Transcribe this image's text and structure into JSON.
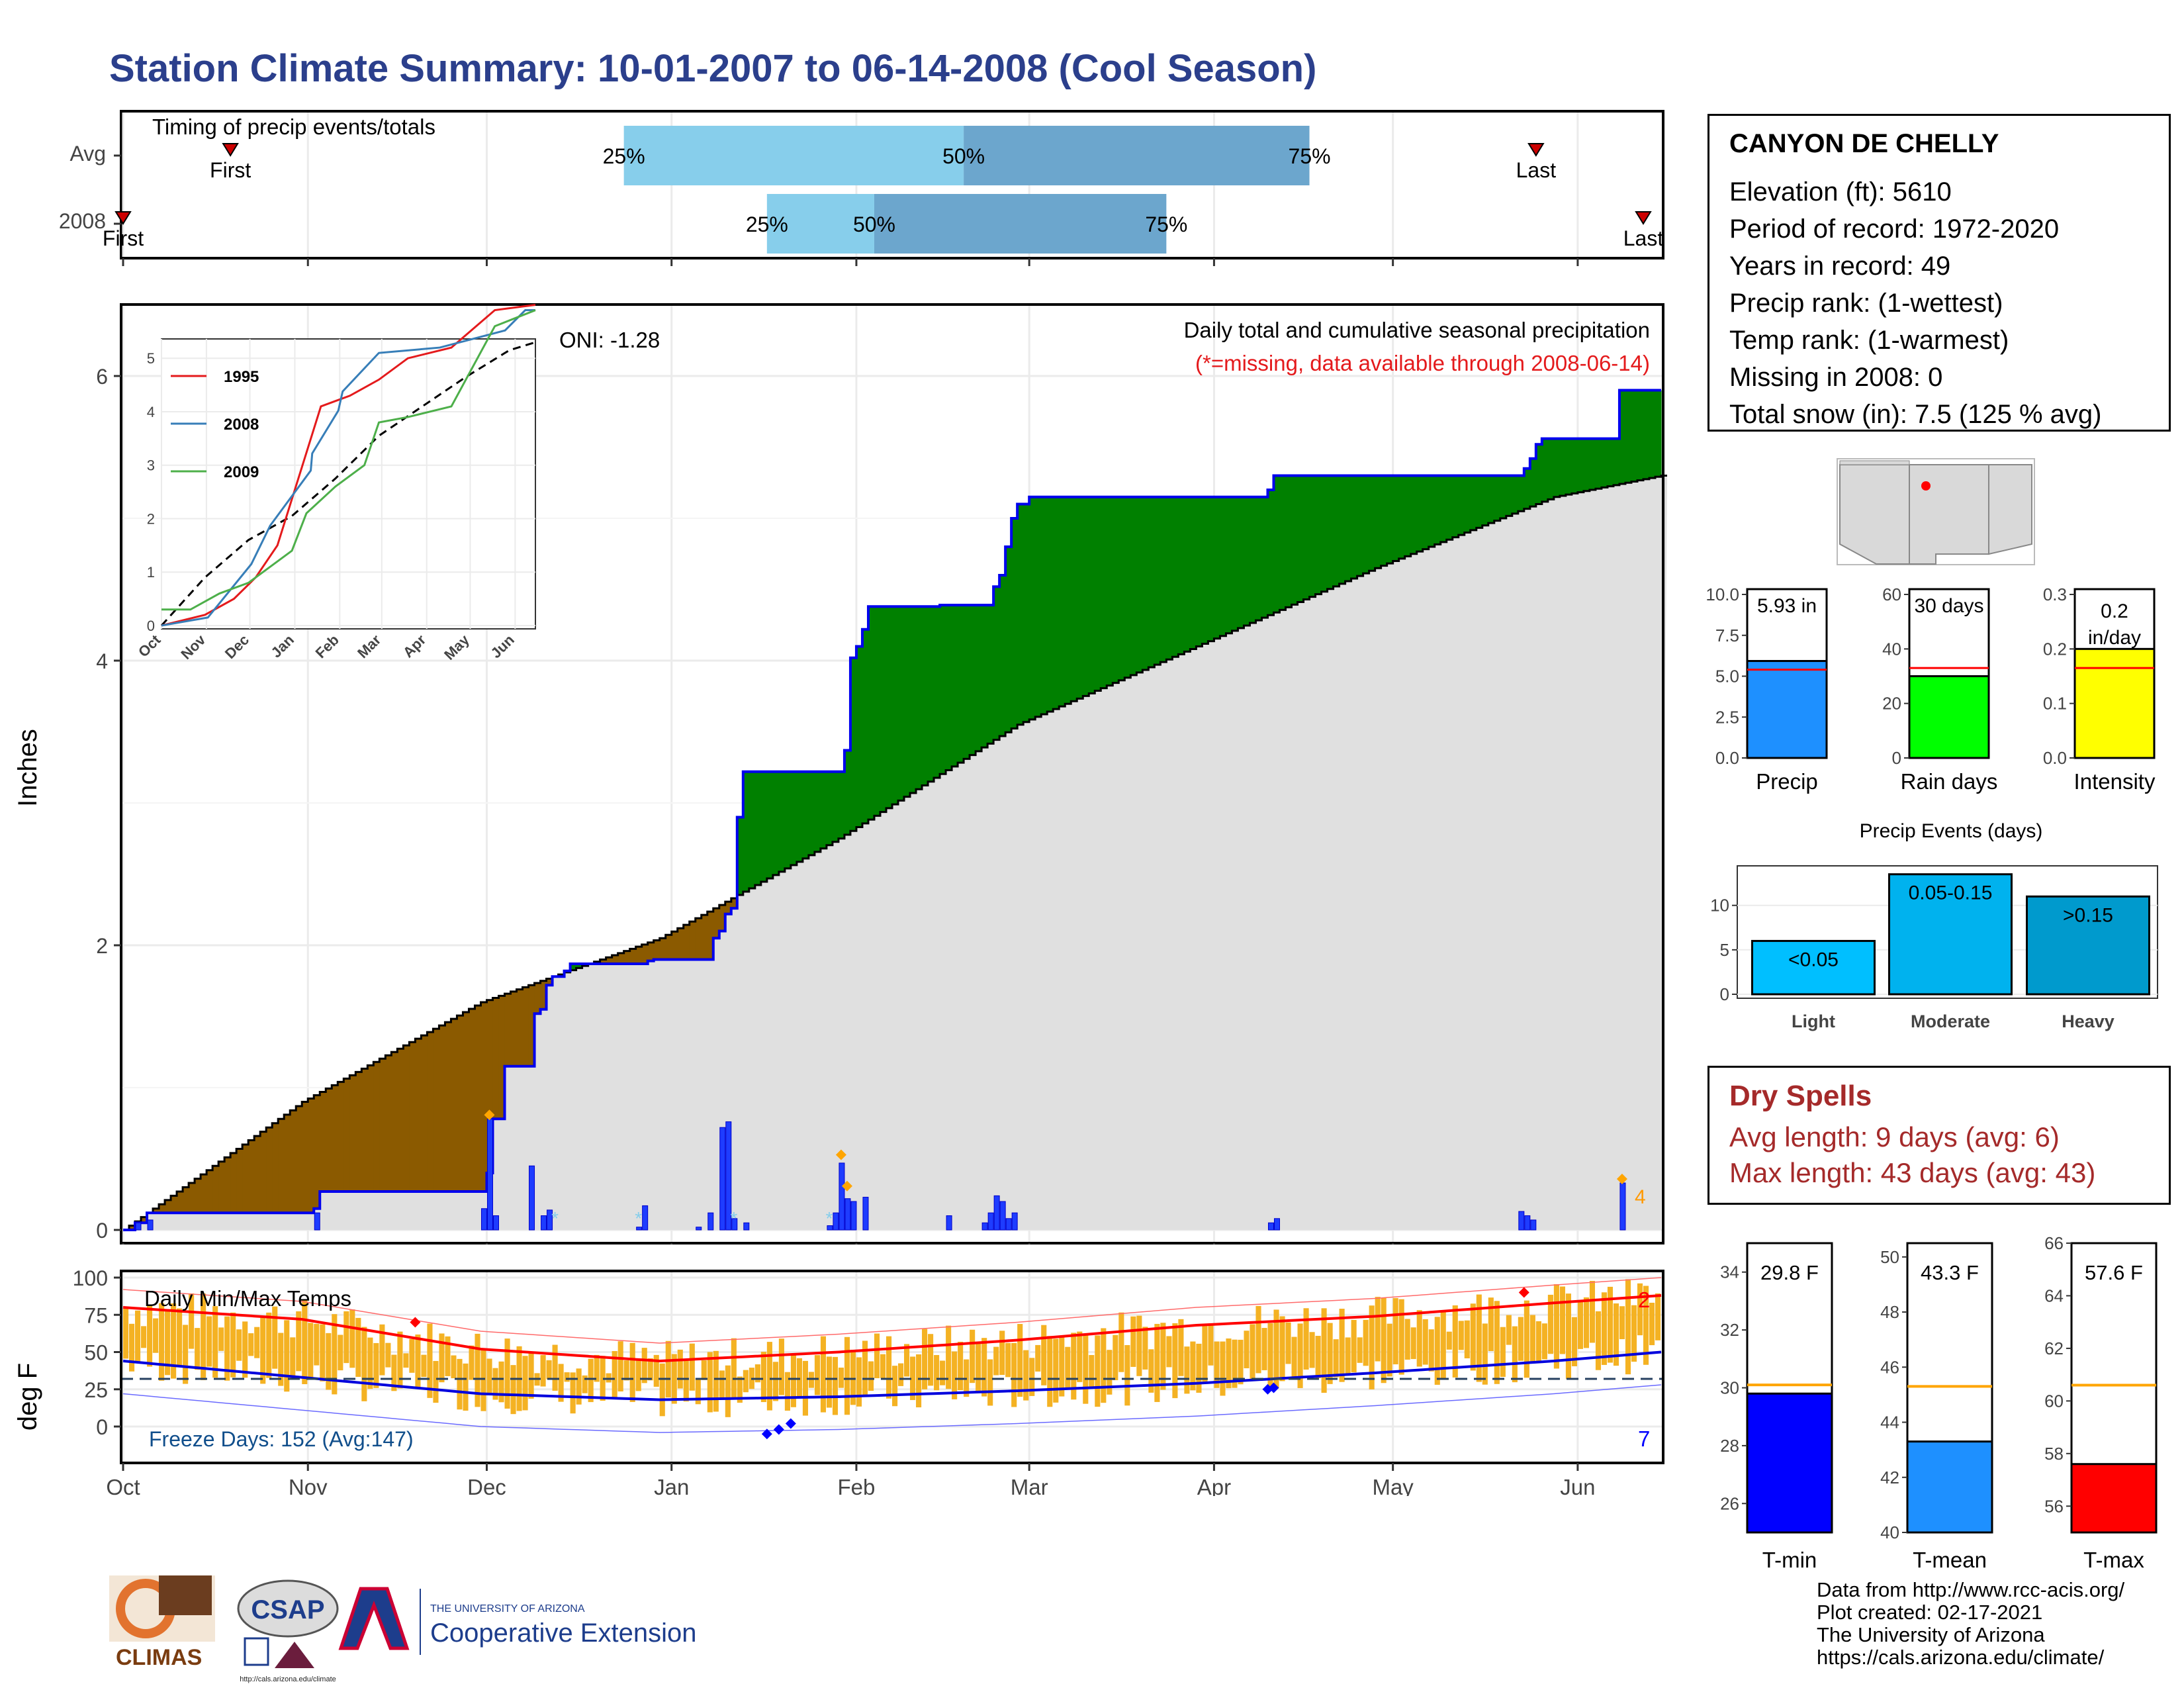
{
  "title": "Station Climate Summary: 10-01-2007 to 06-14-2008 (Cool Season)",
  "timing": {
    "label": "Timing of precip events/totals",
    "rows": [
      {
        "label": "Avg",
        "first_day": 18,
        "last_day": 237,
        "q25_day": 84,
        "q50_day": 141,
        "q75_day": 199
      },
      {
        "label": "2008",
        "first_day": 0,
        "last_day": 255,
        "q25_day": 108,
        "q50_day": 126,
        "q75_day": 175
      }
    ],
    "first_label": "First",
    "last_label": "Last",
    "q_labels": [
      "25%",
      "50%",
      "75%"
    ]
  },
  "precip_panel": {
    "title": "Daily total and cumulative seasonal precipitation",
    "subtitle": "(*=missing, data available through 2008-06-14)",
    "oni": "ONI: -1.28",
    "ylabel": "Inches",
    "yticks": [
      "0",
      "2",
      "4",
      "6"
    ],
    "right_count": "4"
  },
  "months": [
    "Oct",
    "Nov",
    "Dec",
    "Jan",
    "Feb",
    "Mar",
    "Apr",
    "May",
    "Jun"
  ],
  "inset": {
    "legend": [
      "1995",
      "2008",
      "2009"
    ],
    "yticks": [
      "0",
      "1",
      "2",
      "3",
      "4",
      "5"
    ],
    "months": [
      "Oct",
      "Nov",
      "Dec",
      "Jan",
      "Feb",
      "Mar",
      "Apr",
      "May",
      "Jun"
    ]
  },
  "temp_panel": {
    "title": "Daily Min/Max Temps",
    "ylabel": "deg F",
    "yticks": [
      "0",
      "25",
      "50",
      "75",
      "100"
    ],
    "freeze": "Freeze Days: 152 (Avg:147)",
    "count_high": "2",
    "count_low": "7"
  },
  "station": {
    "name": "CANYON DE CHELLY",
    "rows": [
      "Elevation (ft): 5610",
      "Period of record: 1972-2020",
      "Years in record: 49",
      "Precip rank:  (1-wettest)",
      "Temp rank:  (1-warmest)",
      "Missing in 2008: 0",
      "Total snow (in): 7.5 (125 % avg)"
    ]
  },
  "summary_bars": [
    {
      "label": "Precip",
      "value_text": "5.93 in",
      "value": 5.93,
      "avg": 5.4,
      "ymax": 10.0,
      "ticks": [
        "0.0",
        "2.5",
        "5.0",
        "7.5",
        "10.0"
      ],
      "color": "#1e90ff"
    },
    {
      "label": "Rain days",
      "value_text": "30 days",
      "value": 30,
      "avg": 33,
      "ymax": 60,
      "ticks": [
        "0",
        "20",
        "40",
        "60"
      ],
      "color": "#00ff00"
    },
    {
      "label": "Intensity",
      "value_text": "0.2 in/day",
      "value": 0.2,
      "avg": 0.165,
      "ymax": 0.3,
      "ticks": [
        "0.0",
        "0.1",
        "0.2",
        "0.3"
      ],
      "color": "#ffff00"
    }
  ],
  "events": {
    "title": "Precip Events (days)",
    "ticks": [
      "0",
      "5",
      "10"
    ],
    "bars": [
      {
        "label": "Light",
        "range": "<0.05",
        "value": 6,
        "color": "#00bfff"
      },
      {
        "label": "Moderate",
        "range": "0.05-0.15",
        "value": 13.5,
        "color": "#00b2ee"
      },
      {
        "label": "Heavy",
        "range": ">0.15",
        "value": 11,
        "color": "#009acd"
      }
    ]
  },
  "dry_spells": {
    "title": "Dry Spells",
    "avg_length": "Avg length: 9 days (avg: 6)",
    "max_length": "Max length: 43 days (avg: 43)"
  },
  "temp_bars": [
    {
      "label": "T-min",
      "value_text": "29.8 F",
      "value": 29.8,
      "avg": 30.1,
      "ymin": 25,
      "ymax": 35,
      "ticks": [
        "26",
        "28",
        "30",
        "32",
        "34"
      ],
      "color": "#0000ff"
    },
    {
      "label": "T-mean",
      "value_text": "43.3 F",
      "value": 43.3,
      "avg": 45.3,
      "ymin": 40,
      "ymax": 50.5,
      "ticks": [
        "40",
        "42",
        "44",
        "46",
        "48",
        "50"
      ],
      "color": "#1e90ff"
    },
    {
      "label": "T-max",
      "value_text": "57.6 F",
      "value": 57.6,
      "avg": 60.6,
      "ymin": 55,
      "ymax": 66,
      "ticks": [
        "56",
        "58",
        "60",
        "62",
        "64",
        "66"
      ],
      "color": "#ff0000"
    }
  ],
  "logos": {
    "climas": "CLIMAS",
    "csap": "CSAP",
    "ua_small": "THE UNIVERSITY OF ARIZONA",
    "ua_big": "Cooperative Extension",
    "csap_url": "http://cals.arizona.edu/climate"
  },
  "footer": [
    "Data from http://www.rcc-acis.org/",
    "Plot created: 02-17-2021",
    "The University of Arizona",
    "https://cals.arizona.edu/climate/"
  ],
  "chart_data": {
    "type": "area",
    "title": "Daily total and cumulative seasonal precipitation",
    "ylabel": "Inches",
    "ylim": [
      0,
      6.4
    ],
    "x_days": 258,
    "series": [
      {
        "name": "2008",
        "steps": [
          [
            0,
            0
          ],
          [
            2,
            0.05
          ],
          [
            4,
            0.12
          ],
          [
            32,
            0.15
          ],
          [
            33,
            0.27
          ],
          [
            60,
            0.27
          ],
          [
            61,
            0.4
          ],
          [
            62,
            0.78
          ],
          [
            64,
            1.15
          ],
          [
            68,
            1.15
          ],
          [
            69,
            1.52
          ],
          [
            70,
            1.55
          ],
          [
            71,
            1.72
          ],
          [
            72,
            1.78
          ],
          [
            74,
            1.82
          ],
          [
            75,
            1.87
          ],
          [
            87,
            1.87
          ],
          [
            88,
            1.89
          ],
          [
            89,
            1.9
          ],
          [
            98,
            1.9
          ],
          [
            99,
            2.05
          ],
          [
            100,
            2.1
          ],
          [
            101,
            2.22
          ],
          [
            102,
            2.26
          ],
          [
            103,
            2.9
          ],
          [
            104,
            3.22
          ],
          [
            120,
            3.22
          ],
          [
            121,
            3.37
          ],
          [
            122,
            4.02
          ],
          [
            123,
            4.1
          ],
          [
            124,
            4.22
          ],
          [
            125,
            4.38
          ],
          [
            136,
            4.38
          ],
          [
            137,
            4.39
          ],
          [
            145,
            4.39
          ],
          [
            146,
            4.52
          ],
          [
            147,
            4.6
          ],
          [
            148,
            4.8
          ],
          [
            149,
            5.0
          ],
          [
            150,
            5.1
          ],
          [
            152,
            5.15
          ],
          [
            191,
            5.15
          ],
          [
            192,
            5.2
          ],
          [
            193,
            5.3
          ],
          [
            234,
            5.3
          ],
          [
            235,
            5.35
          ],
          [
            236,
            5.42
          ],
          [
            237,
            5.52
          ],
          [
            238,
            5.56
          ],
          [
            250,
            5.56
          ],
          [
            251,
            5.9
          ],
          [
            258,
            5.9
          ]
        ]
      },
      {
        "name": "Avg",
        "values_note": "cumulative average",
        "points": [
          [
            0,
            0
          ],
          [
            30,
            0.9
          ],
          [
            60,
            1.6
          ],
          [
            90,
            2.05
          ],
          [
            120,
            2.75
          ],
          [
            150,
            3.55
          ],
          [
            180,
            4.1
          ],
          [
            210,
            4.65
          ],
          [
            240,
            5.15
          ],
          [
            258,
            5.3
          ]
        ]
      }
    ],
    "daily_precip": [
      [
        2,
        0.05
      ],
      [
        4,
        0.07
      ],
      [
        32,
        0.12
      ],
      [
        60,
        0.15
      ],
      [
        61,
        0.78
      ],
      [
        62,
        0.1
      ],
      [
        68,
        0.45
      ],
      [
        70,
        0.1
      ],
      [
        71,
        0.14
      ],
      [
        86,
        0.02
      ],
      [
        87,
        0.17
      ],
      [
        96,
        0.02
      ],
      [
        98,
        0.12
      ],
      [
        100,
        0.72
      ],
      [
        101,
        0.76
      ],
      [
        102,
        0.08
      ],
      [
        104,
        0.05
      ],
      [
        118,
        0.03
      ],
      [
        119,
        0.12
      ],
      [
        120,
        0.47
      ],
      [
        121,
        0.22
      ],
      [
        122,
        0.2
      ],
      [
        124,
        0.23
      ],
      [
        138,
        0.1
      ],
      [
        144,
        0.05
      ],
      [
        145,
        0.12
      ],
      [
        146,
        0.24
      ],
      [
        147,
        0.2
      ],
      [
        148,
        0.08
      ],
      [
        149,
        0.12
      ],
      [
        192,
        0.05
      ],
      [
        193,
        0.08
      ],
      [
        234,
        0.13
      ],
      [
        235,
        0.1
      ],
      [
        236,
        0.07
      ],
      [
        251,
        0.33
      ]
    ],
    "temps": {
      "ylim": [
        -20,
        100
      ],
      "avg_max": [
        [
          0,
          80
        ],
        [
          30,
          72
        ],
        [
          60,
          52
        ],
        [
          90,
          44
        ],
        [
          120,
          50
        ],
        [
          150,
          58
        ],
        [
          180,
          68
        ],
        [
          210,
          74
        ],
        [
          240,
          83
        ],
        [
          258,
          88
        ]
      ],
      "avg_min": [
        [
          0,
          44
        ],
        [
          30,
          33
        ],
        [
          60,
          22
        ],
        [
          90,
          18
        ],
        [
          120,
          20
        ],
        [
          150,
          24
        ],
        [
          180,
          29
        ],
        [
          210,
          36
        ],
        [
          240,
          44
        ],
        [
          258,
          50
        ]
      ],
      "freeze_line": 32
    }
  }
}
